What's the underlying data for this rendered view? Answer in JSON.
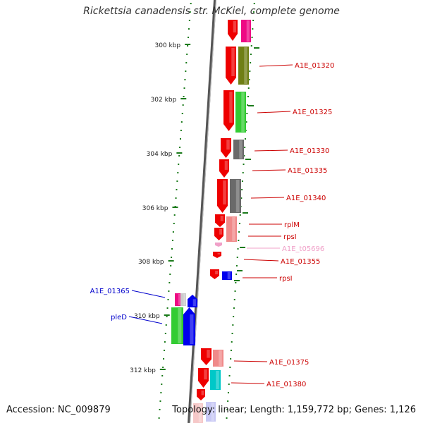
{
  "title": "Rickettsia canadensis str. McKiel, complete genome",
  "accession_text": "Accession: NC_009879",
  "summary_text": "Topology: linear; Length: 1,159,772 bp; Genes: 1,126",
  "scale_labels": [
    "300 kbp",
    "302 kbp",
    "304 kbp",
    "306 kbp",
    "308 kbp",
    "310 kbp",
    "312 kbp"
  ],
  "gene_labels": [
    {
      "text": "A1E_01320",
      "color": "#cc0000"
    },
    {
      "text": "A1E_01325",
      "color": "#cc0000"
    },
    {
      "text": "A1E_01330",
      "color": "#cc0000"
    },
    {
      "text": "A1E_01335",
      "color": "#cc0000"
    },
    {
      "text": "A1E_01340",
      "color": "#cc0000"
    },
    {
      "text": "rplM",
      "color": "#cc0000"
    },
    {
      "text": "rpsI",
      "color": "#cc0000"
    },
    {
      "text": "A1E_t05696",
      "color": "#f0a0c8"
    },
    {
      "text": "A1E_01355",
      "color": "#cc0000"
    },
    {
      "text": "rpsI",
      "color": "#cc0000"
    },
    {
      "text": "A1E_01365",
      "color": "#0000cc"
    },
    {
      "text": "pleD",
      "color": "#0000cc"
    },
    {
      "text": "A1E_01375",
      "color": "#cc0000"
    },
    {
      "text": "A1E_01380",
      "color": "#cc0000"
    }
  ],
  "colors": {
    "strand_forward": "#ee0000",
    "strand_reverse": "#0000ee",
    "backbone": "#888888",
    "ticks": "#1a7a1a"
  }
}
